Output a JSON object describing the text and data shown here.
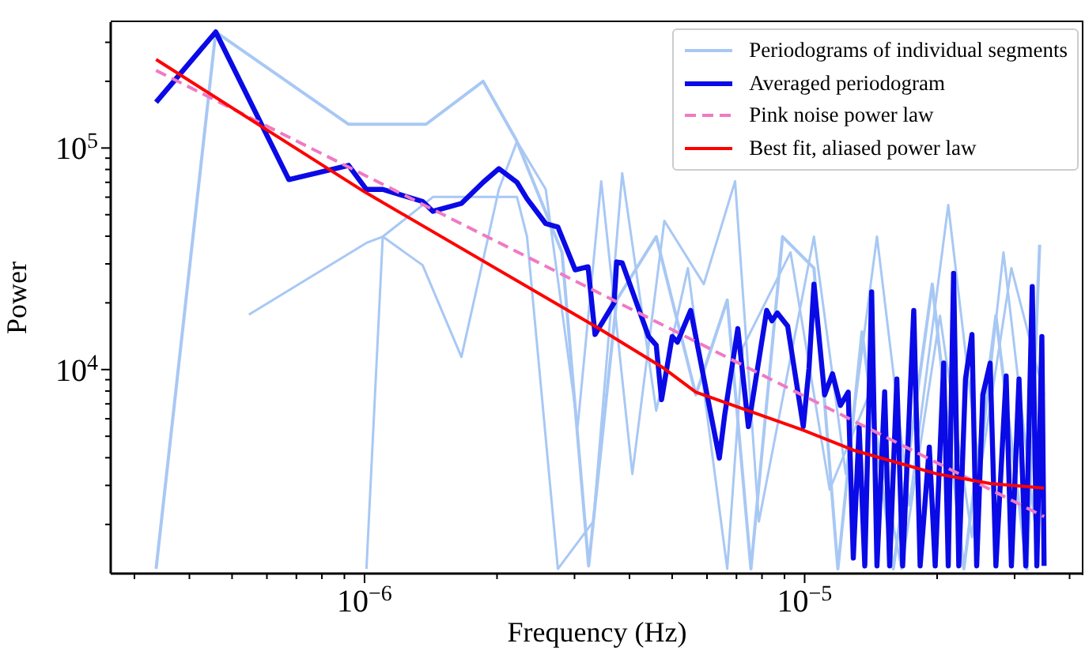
{
  "chart_data": {
    "type": "line",
    "xlabel": "Frequency (Hz)",
    "ylabel": "Power",
    "log": "xy",
    "legend": "top right",
    "xlim": [
      2.65e-07,
      4.3e-05
    ],
    "ylim": [
      1200,
      370000
    ],
    "xticks": [
      {
        "value": 3e-07,
        "label": null
      },
      {
        "value": 4e-07,
        "label": null
      },
      {
        "value": 5e-07,
        "label": null
      },
      {
        "value": 6e-07,
        "label": null
      },
      {
        "value": 7e-07,
        "label": null
      },
      {
        "value": 8e-07,
        "label": null
      },
      {
        "value": 9e-07,
        "label": null
      },
      {
        "value": 1e-06,
        "label": "10$^{−6}$"
      },
      {
        "value": 2e-06,
        "label": null
      },
      {
        "value": 3e-06,
        "label": null
      },
      {
        "value": 4e-06,
        "label": null
      },
      {
        "value": 5e-06,
        "label": null
      },
      {
        "value": 6e-06,
        "label": null
      },
      {
        "value": 7e-06,
        "label": null
      },
      {
        "value": 8e-06,
        "label": null
      },
      {
        "value": 9e-06,
        "label": null
      },
      {
        "value": 1e-05,
        "label": "10$^{−5}$"
      },
      {
        "value": 2e-05,
        "label": null
      },
      {
        "value": 3e-05,
        "label": null
      },
      {
        "value": 4e-05,
        "label": null
      }
    ],
    "yticks": [
      {
        "value": 2000,
        "label": null
      },
      {
        "value": 3000,
        "label": null
      },
      {
        "value": 4000,
        "label": null
      },
      {
        "value": 5000,
        "label": null
      },
      {
        "value": 6000,
        "label": null
      },
      {
        "value": 7000,
        "label": null
      },
      {
        "value": 8000,
        "label": null
      },
      {
        "value": 9000,
        "label": null
      },
      {
        "value": 10000,
        "label": "10$^{4}$"
      },
      {
        "value": 20000,
        "label": null
      },
      {
        "value": 30000,
        "label": null
      },
      {
        "value": 40000,
        "label": null
      },
      {
        "value": 50000,
        "label": null
      },
      {
        "value": 60000,
        "label": null
      },
      {
        "value": 70000,
        "label": null
      },
      {
        "value": 80000,
        "label": null
      },
      {
        "value": 90000,
        "label": null
      },
      {
        "value": 100000,
        "label": "10$^{5}$"
      },
      {
        "value": 200000,
        "label": null
      },
      {
        "value": 300000,
        "label": null
      }
    ],
    "series": [
      {
        "name": "Periodograms of individual segments",
        "color": "#a8c8f4",
        "x": [
          3.36e-07,
          4.59e-07,
          9.2e-07,
          1.38e-06,
          1.86e-06,
          2.21e-06,
          2.81e-06,
          3.23e-06,
          3.74e-06,
          4.6e-06,
          5.66e-06,
          6.67e-06,
          7.55e-06,
          8.91e-06,
          1.05e-05,
          1.19e-05,
          1.35e-05,
          1.59e-05,
          1.95e-05,
          2.3e-05,
          2.72e-05,
          3.2e-05,
          3.42e-05
        ],
        "values": [
          1260,
          334000,
          128000,
          128000,
          200000,
          109000,
          33800,
          1300,
          20600,
          39800,
          7690,
          20600,
          1260,
          39800,
          28700,
          1260,
          14800,
          1260,
          24300,
          1260,
          17500,
          1260,
          36600
        ]
      },
      {
        "color": "#a8c8f4",
        "x": [
          5.46e-07,
          1.01e-06,
          1.1e-06,
          1.355e-06,
          1.66e-06,
          2.02e-06,
          2.22e-06,
          2.58e-06,
          3.05e-06,
          3.45e-06,
          4.06e-06,
          4.8e-06,
          5.9e-06,
          6.95e-06,
          7.87e-06,
          1.05e-05,
          1.24e-05,
          1.46e-05,
          1.73e-05,
          2.12e-05,
          2.5e-05,
          2.95e-05,
          3.5e-05
        ],
        "values": [
          17700,
          37300,
          39800,
          29600,
          11400,
          65200,
          107000,
          65200,
          5530,
          70800,
          3380,
          46900,
          24300,
          70800,
          2060,
          39800,
          3380,
          39800,
          2430,
          55300,
          3380,
          28700,
          7690
        ]
      },
      {
        "color": "#a8c8f4",
        "x": [
          1.01e-06,
          1.1e-06,
          1.43e-06,
          2.22e-06,
          2.34e-06,
          2.75e-06,
          3.31e-06,
          3.85e-06,
          4.6e-06,
          5.43e-06,
          6.67e-06,
          7.24e-06,
          9.29e-06,
          1.14e-05,
          1.4e-05,
          1.66e-05,
          2.03e-05,
          2.4e-05,
          2.83e-05,
          3.33e-05
        ],
        "values": [
          1260,
          39800,
          60100,
          60100,
          39800,
          1260,
          2060,
          76900,
          6520,
          28700,
          1260,
          12600,
          33800,
          2870,
          7690,
          1260,
          17500,
          1750,
          33800,
          2060
        ]
      },
      {
        "name": "Averaged periodogram",
        "color": "#0a0ae6",
        "x": [
          3.36e-07,
          4.59e-07,
          6.73e-07,
          9.2e-07,
          1.01e-06,
          1.1e-06,
          1.355e-06,
          1.43e-06,
          1.66e-06,
          1.86e-06,
          2.02e-06,
          2.22e-06,
          2.34e-06,
          2.58e-06,
          2.75e-06,
          3.01e-06,
          3.22e-06,
          3.34e-06,
          3.69e-06,
          3.74e-06,
          3.85e-06,
          4.42e-06,
          4.6e-06,
          4.73e-06,
          5e-06,
          5.14e-06,
          5.51e-06,
          6.4e-06,
          6.58e-06,
          7.05e-06,
          7.45e-06,
          8.2e-06,
          8.43e-06,
          8.67e-06,
          9.15e-06,
          9.93e-06,
          1.023e-05,
          1.05e-05,
          1.11e-05,
          1.157e-05,
          1.206e-05,
          1.256e-05,
          1.29e-05,
          1.33e-05,
          1.37e-05,
          1.42e-05,
          1.46e-05,
          1.52e-05,
          1.56e-05,
          1.62e-05,
          1.67e-05,
          1.77e-05,
          1.83e-05,
          1.92e-05,
          1.98e-05,
          2.07e-05,
          2.12e-05,
          2.18e-05,
          2.24e-05,
          2.32e-05,
          2.4e-05,
          2.46e-05,
          2.54e-05,
          2.64e-05,
          2.72e-05,
          2.87e-05,
          2.95e-05,
          3.07e-05,
          3.18e-05,
          3.29e-05,
          3.37e-05,
          3.46e-05,
          3.5e-05
        ],
        "values": [
          161000,
          334000,
          72000,
          83500,
          65000,
          65000,
          57400,
          51800,
          56200,
          70000,
          80700,
          70000,
          59000,
          45600,
          44000,
          28200,
          29100,
          14400,
          20000,
          30600,
          30300,
          14100,
          12900,
          7310,
          14100,
          13300,
          18500,
          3980,
          6210,
          15300,
          5530,
          18500,
          16600,
          18000,
          15700,
          5530,
          10100,
          24300,
          7690,
          9570,
          6890,
          7910,
          1410,
          5500,
          1300,
          22400,
          1300,
          7930,
          1300,
          9060,
          1300,
          18500,
          1300,
          4470,
          1300,
          10700,
          1300,
          27200,
          1300,
          9060,
          14400,
          1300,
          7690,
          10700,
          1300,
          9360,
          1300,
          9060,
          1300,
          23700,
          1300,
          14100,
          1300
        ]
      },
      {
        "name": "Pink noise power law",
        "color": "#f07ac4",
        "line_style": "dashed",
        "x": [
          3.36e-07,
          3.5e-05
        ],
        "values": [
          224000,
          2170
        ]
      },
      {
        "name": "Best fit, aliased power law",
        "color": "#ff0000",
        "x": [
          3.36e-07,
          1e-06,
          3.45e-06,
          4.8e-06,
          5.66e-06,
          7.45e-06,
          9.8e-06,
          1.29e-05,
          2e-05,
          2.64e-05,
          3.5e-05
        ],
        "values": [
          251000,
          63400,
          15100,
          10100,
          7910,
          6520,
          5380,
          4330,
          3380,
          3060,
          2920
        ]
      }
    ]
  }
}
